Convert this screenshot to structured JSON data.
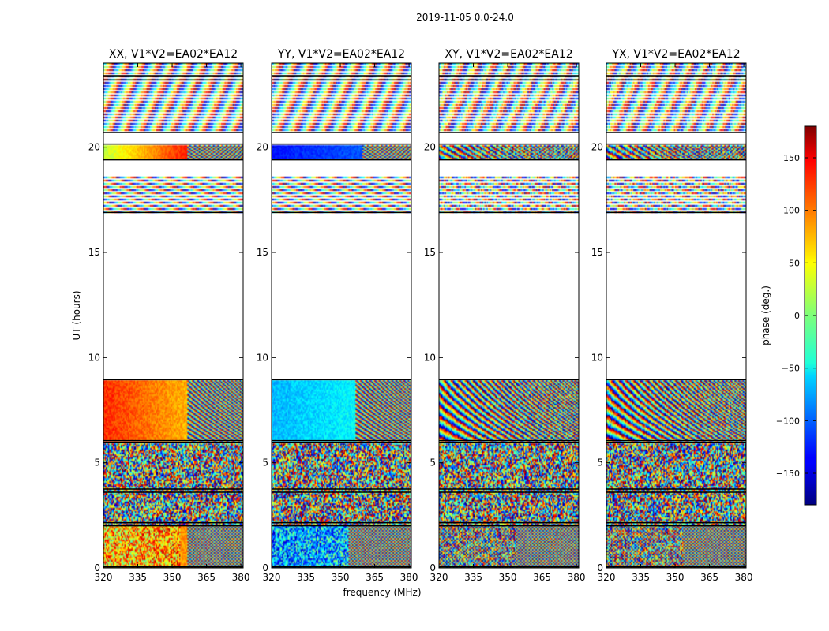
{
  "chart_data": {
    "type": "heatmap",
    "suptitle": "2019-11-05 0.0-24.0",
    "xlabel": "frequency (MHz)",
    "ylabel": "UT (hours)",
    "xlim": [
      320,
      381
    ],
    "ylim": [
      0,
      24
    ],
    "xticks": [
      "320",
      "335",
      "350",
      "365",
      "380"
    ],
    "yticks": [
      "0",
      "5",
      "10",
      "15",
      "20"
    ],
    "colorbar": {
      "label": "phase (deg.)",
      "range": [
        -180,
        180
      ],
      "ticks": [
        "−150",
        "−100",
        "−50",
        "0",
        "50",
        "100",
        "150"
      ],
      "tick_values": [
        -150,
        -100,
        -50,
        0,
        50,
        100,
        150
      ],
      "colormap": "jet"
    },
    "panels": [
      {
        "title": "XX, V1*V2=EA02*EA12",
        "pattern": "xx"
      },
      {
        "title": "YY, V1*V2=EA02*EA12",
        "pattern": "yy"
      },
      {
        "title": "XY, V1*V2=EA02*EA12",
        "pattern": "noise"
      },
      {
        "title": "YX, V1*V2=EA02*EA12",
        "pattern": "noise"
      }
    ],
    "data_time_ranges_hours": [
      [
        0,
        2.0
      ],
      [
        2.0,
        5.9
      ],
      [
        6.0,
        8.9
      ],
      [
        16.9,
        18.7
      ],
      [
        19.4,
        20.1
      ],
      [
        20.7,
        24.0
      ]
    ],
    "grid": false
  }
}
